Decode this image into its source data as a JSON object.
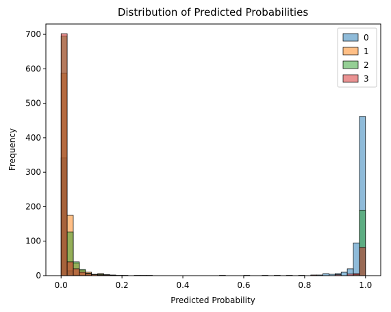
{
  "chart_data": {
    "type": "histogram",
    "title": "Distribution of Predicted Probabilities",
    "xlabel": "Predicted Probability",
    "ylabel": "Frequency",
    "xlim": [
      -0.05,
      1.05
    ],
    "ylim": [
      0,
      730
    ],
    "xticks": [
      "0.0",
      "0.2",
      "0.4",
      "0.6",
      "0.8",
      "1.0"
    ],
    "yticks": [
      "0",
      "100",
      "200",
      "300",
      "400",
      "500",
      "600",
      "700"
    ],
    "bin_start": 0.0,
    "bin_width": 0.02,
    "legend_position": "top-right",
    "grid": false,
    "series": [
      {
        "name": "0",
        "color": "#1f77b4",
        "bins": [
          [
            0.0,
            342
          ],
          [
            0.02,
            14
          ],
          [
            0.04,
            2
          ],
          [
            0.06,
            1
          ],
          [
            0.08,
            1
          ],
          [
            0.84,
            2
          ],
          [
            0.86,
            6
          ],
          [
            0.88,
            4
          ],
          [
            0.9,
            6
          ],
          [
            0.92,
            10
          ],
          [
            0.94,
            20
          ],
          [
            0.96,
            95
          ],
          [
            0.98,
            462
          ]
        ]
      },
      {
        "name": "1",
        "color": "#ff7f0e",
        "bins": [
          [
            0.0,
            587
          ],
          [
            0.02,
            175
          ],
          [
            0.04,
            36
          ],
          [
            0.06,
            16
          ],
          [
            0.08,
            10
          ],
          [
            0.1,
            3
          ],
          [
            0.12,
            6
          ],
          [
            0.14,
            3
          ],
          [
            0.16,
            2
          ],
          [
            0.18,
            1
          ],
          [
            0.2,
            1
          ],
          [
            0.24,
            1
          ],
          [
            0.26,
            1
          ],
          [
            0.28,
            1
          ]
        ]
      },
      {
        "name": "2",
        "color": "#2ca02c",
        "bins": [
          [
            0.0,
            695
          ],
          [
            0.02,
            127
          ],
          [
            0.04,
            40
          ],
          [
            0.06,
            18
          ],
          [
            0.08,
            7
          ],
          [
            0.1,
            4
          ],
          [
            0.12,
            4
          ],
          [
            0.14,
            2
          ],
          [
            0.16,
            1
          ],
          [
            0.96,
            3
          ],
          [
            0.98,
            190
          ]
        ]
      },
      {
        "name": "3",
        "color": "#d62728",
        "bins": [
          [
            0.0,
            702
          ],
          [
            0.02,
            40
          ],
          [
            0.04,
            20
          ],
          [
            0.06,
            10
          ],
          [
            0.08,
            5
          ],
          [
            0.1,
            3
          ],
          [
            0.12,
            2
          ],
          [
            0.14,
            2
          ],
          [
            0.16,
            1
          ],
          [
            0.52,
            1
          ],
          [
            0.6,
            1
          ],
          [
            0.66,
            1
          ],
          [
            0.7,
            1
          ],
          [
            0.74,
            1
          ],
          [
            0.78,
            1
          ],
          [
            0.82,
            2
          ],
          [
            0.9,
            3
          ],
          [
            0.94,
            5
          ],
          [
            0.96,
            6
          ],
          [
            0.98,
            82
          ]
        ]
      }
    ]
  }
}
